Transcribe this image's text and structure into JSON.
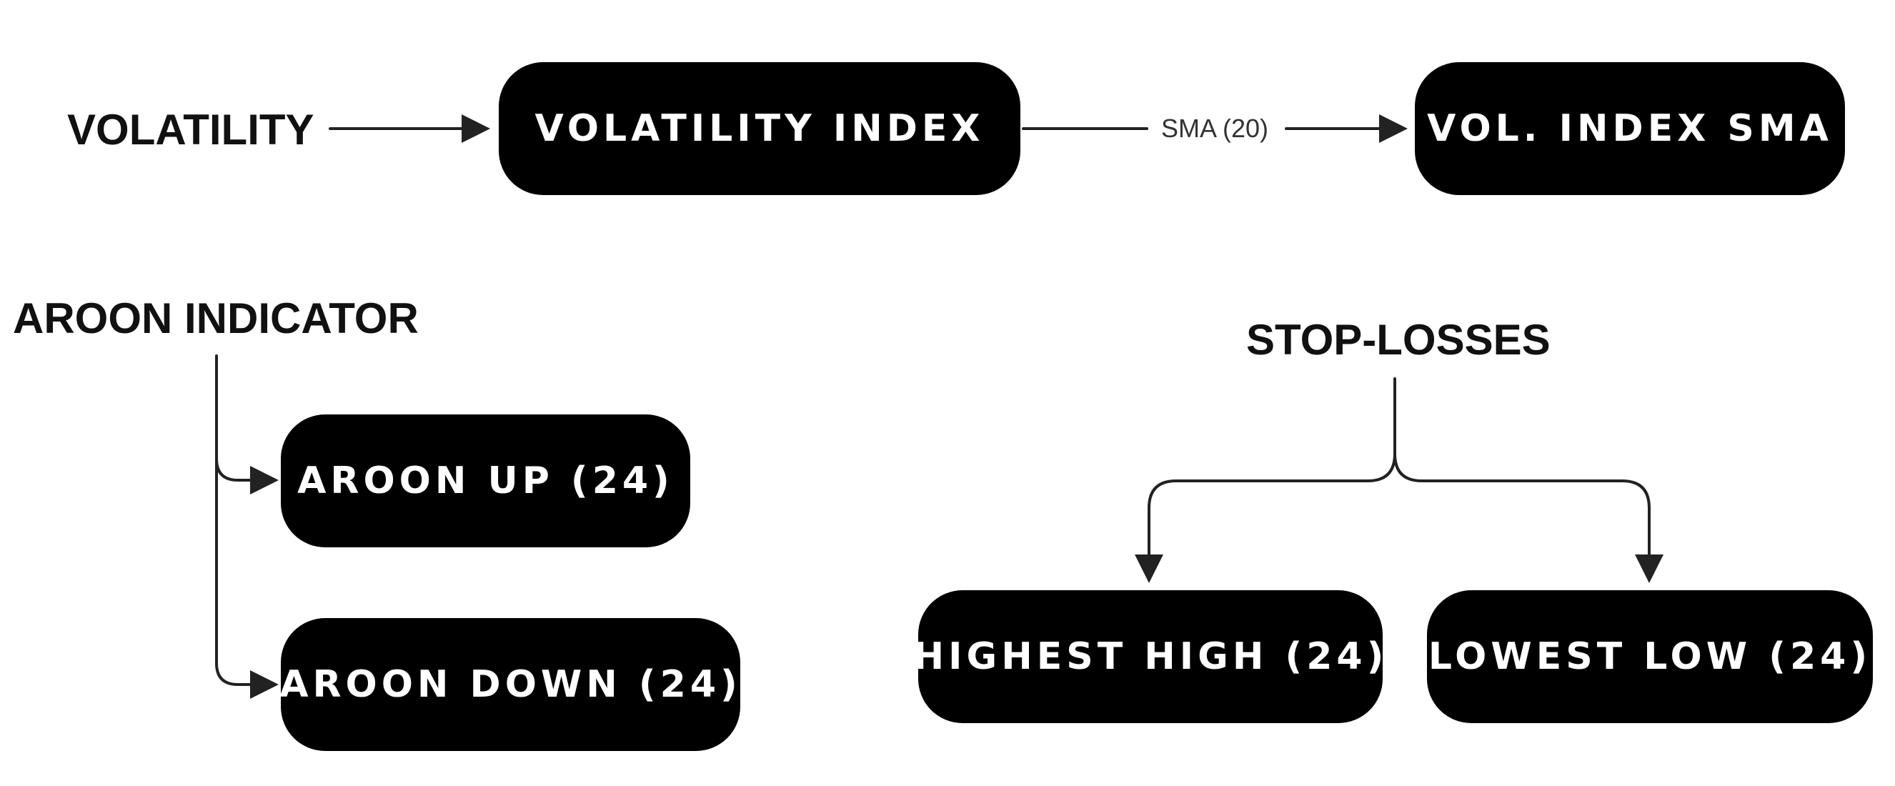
{
  "labels": {
    "volatility": "VOLATILITY",
    "aroon_indicator": "AROON INDICATOR",
    "stop_losses": "STOP-LOSSES"
  },
  "nodes": {
    "volatility_index": "VOLATILITY INDEX",
    "vol_index_sma": "VOL. INDEX SMA",
    "aroon_up": "AROON UP (24)",
    "aroon_down": "AROON DOWN (24)",
    "highest_high": "HIGHEST HIGH (24)",
    "lowest_low": "LOWEST LOW (24)"
  },
  "edges": {
    "sma_label": "SMA (20)"
  },
  "colors": {
    "node_fill": "#000000",
    "node_text": "#ffffff",
    "line": "#222222",
    "text": "#111111"
  }
}
